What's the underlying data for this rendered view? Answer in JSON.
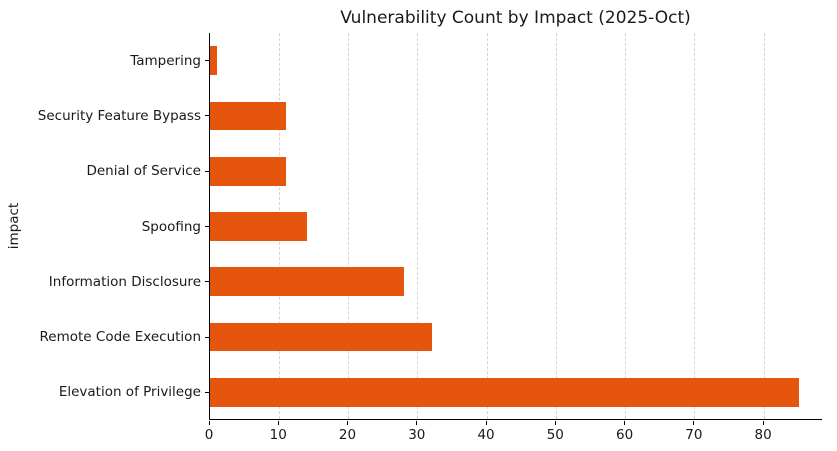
{
  "figure": {
    "title": "Vulnerability Count by Impact (2025-Oct)",
    "ylabel": "impact",
    "xlabel": ""
  },
  "colors": {
    "bar": "#e6550d",
    "background": "#ffffff",
    "text": "#1a1a1a",
    "grid": "#d4d4d4",
    "spine": "#000000"
  },
  "chart_data": {
    "type": "bar",
    "orientation": "horizontal",
    "title": "Vulnerability Count by Impact (2025-Oct)",
    "xlabel": "",
    "ylabel": "impact",
    "categories_top_to_bottom": [
      "Tampering",
      "Security Feature Bypass",
      "Denial of Service",
      "Spoofing",
      "Information Disclosure",
      "Remote Code Execution",
      "Elevation of Privilege"
    ],
    "values": [
      1,
      11,
      11,
      14,
      28,
      32,
      85
    ],
    "x_ticks": [
      0,
      10,
      20,
      30,
      40,
      50,
      60,
      70,
      80
    ],
    "xlim": [
      0,
      88.5
    ],
    "grid": true,
    "grid_axis": "x",
    "legend": false,
    "bar_color": "#e6550d",
    "bar_fraction_of_row": 0.52
  }
}
